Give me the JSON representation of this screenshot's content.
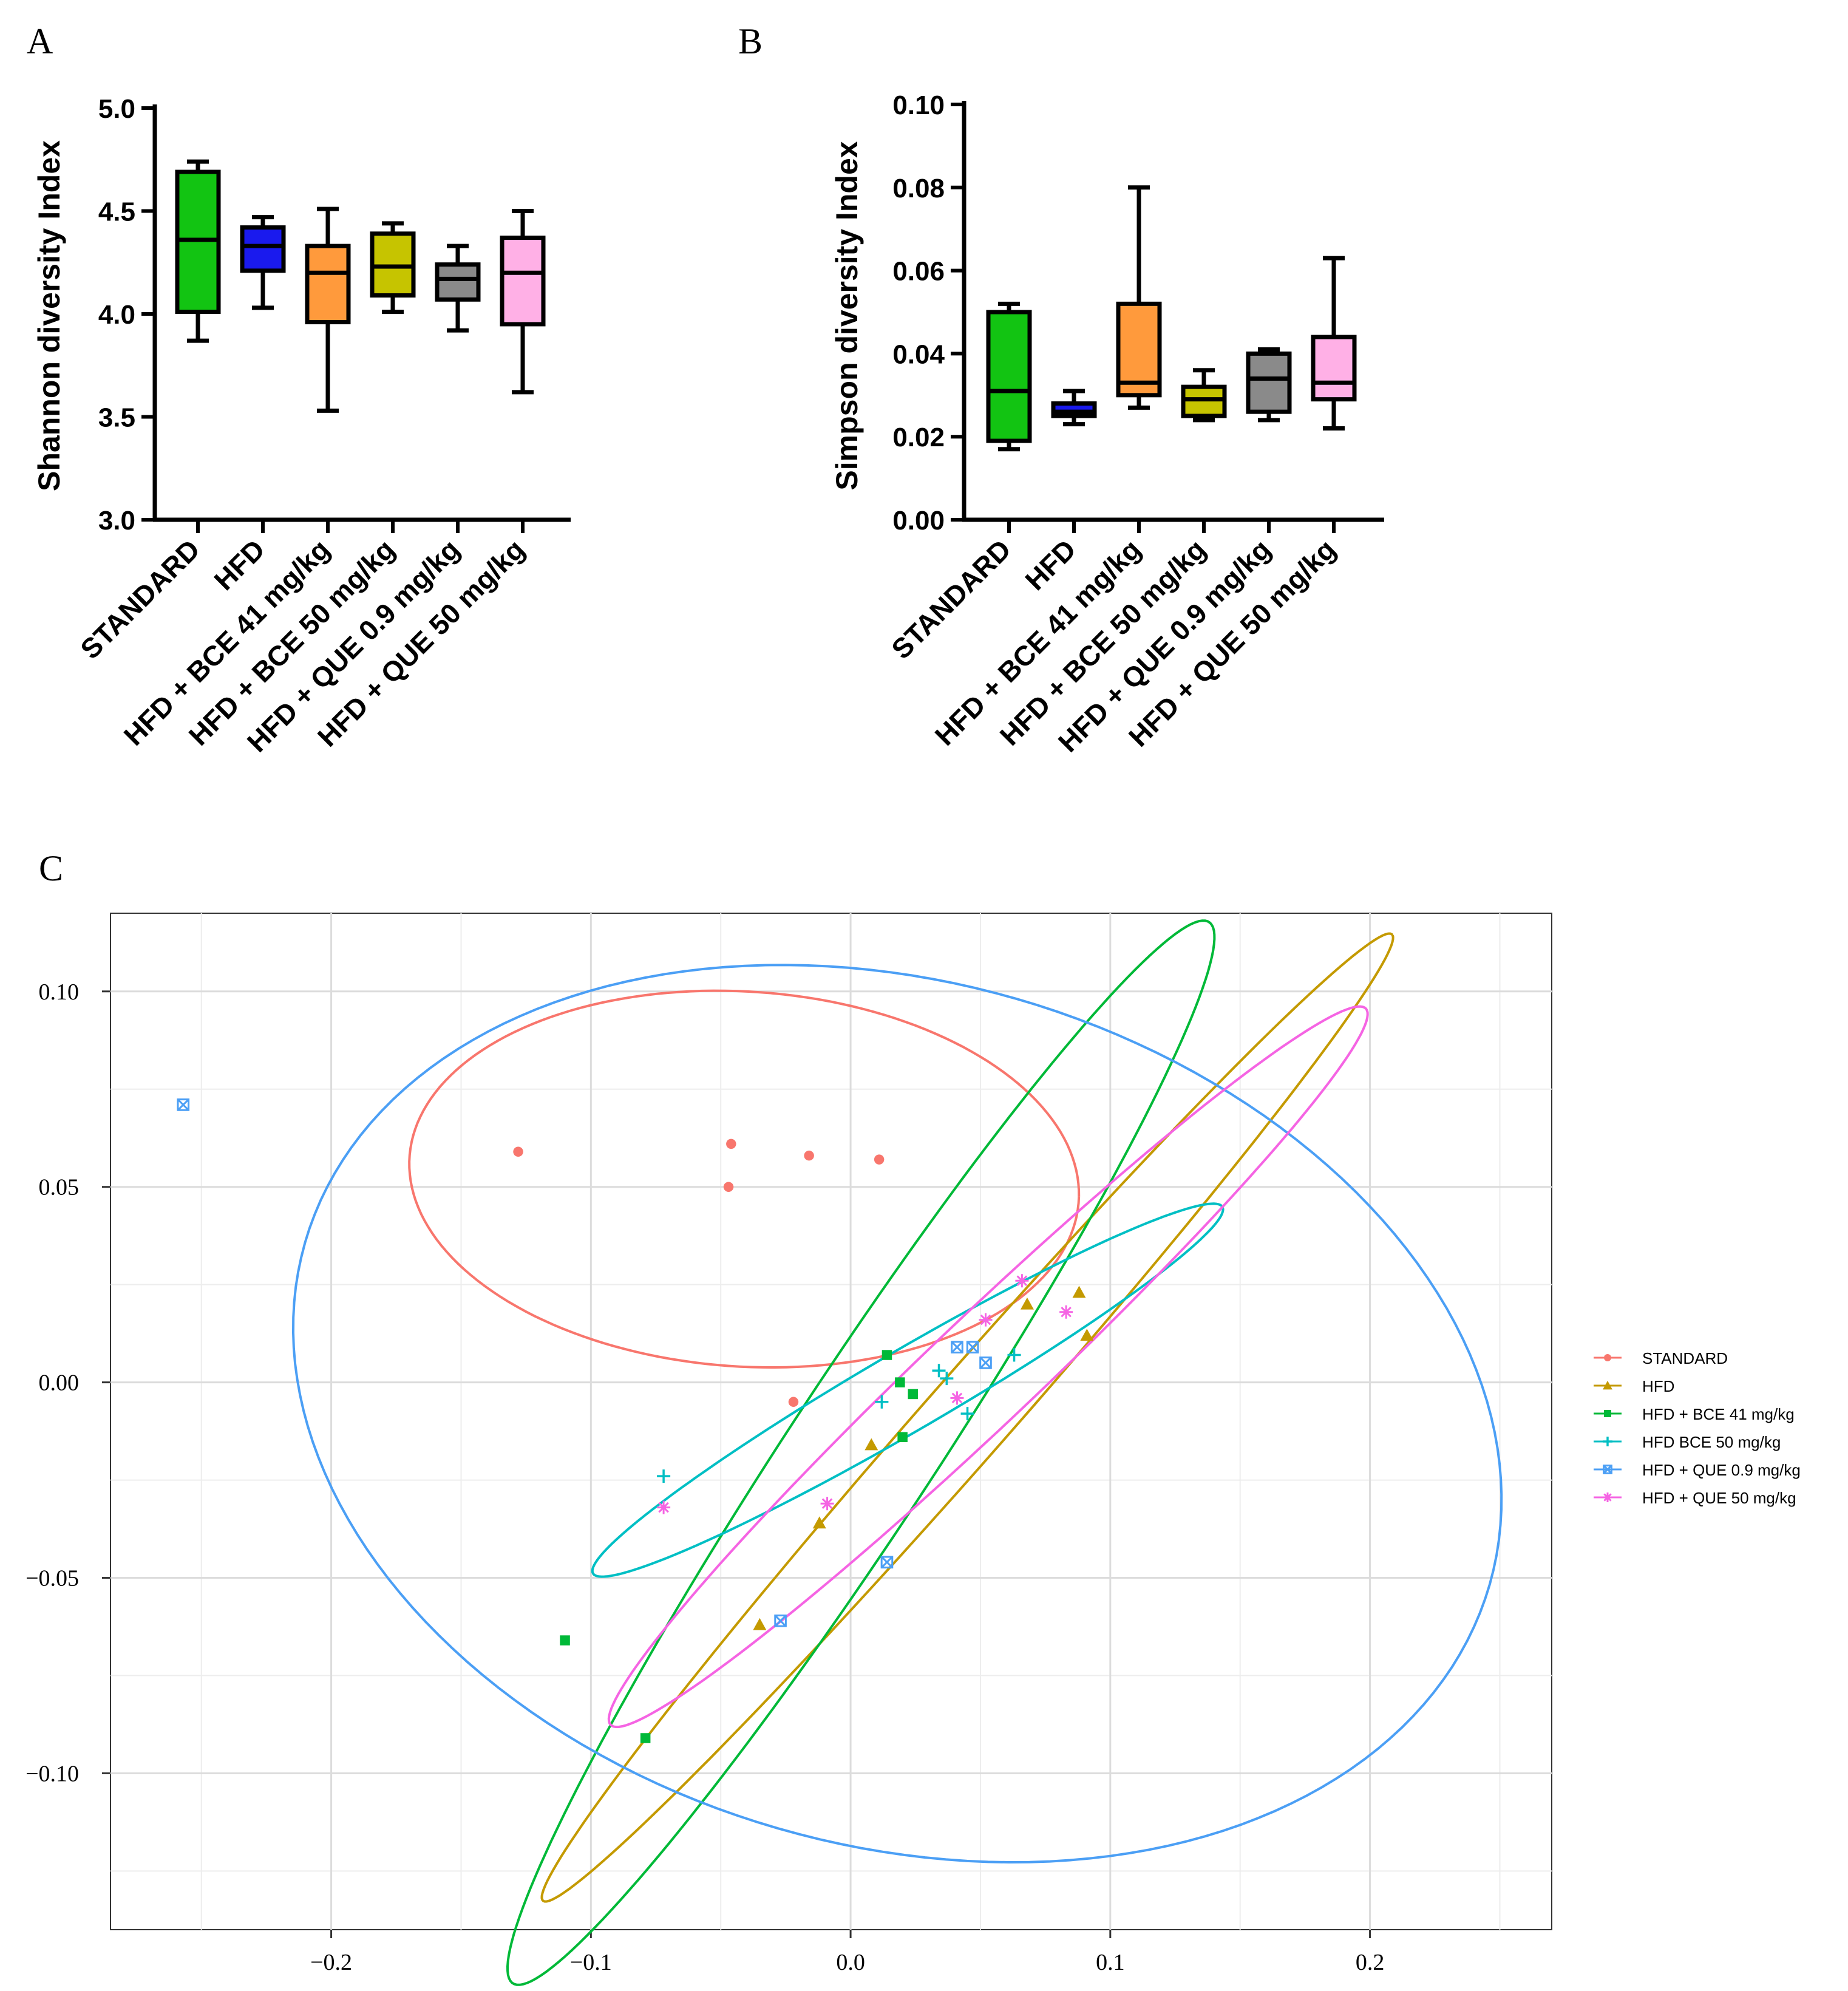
{
  "panel_labels": [
    "A",
    "B",
    "C"
  ],
  "legend_title": "",
  "chart_data": [
    {
      "type": "box",
      "panel": "A",
      "title": "",
      "xlabel": "",
      "ylabel": "Shannon diversity Index",
      "ylim": [
        3.0,
        5.0
      ],
      "yticks": [
        "3.0",
        "3.5",
        "4.0",
        "4.5",
        "5.0"
      ],
      "tick_values": [
        3.0,
        3.5,
        4.0,
        4.5,
        5.0
      ],
      "categories": [
        "STANDARD",
        "HFD",
        "HFD + BCE 41 mg/kg",
        "HFD + BCE 50 mg/kg",
        "HFD + QUE 0.9 mg/kg",
        "HFD + QUE 50 mg/kg"
      ],
      "colors": [
        "#12c412",
        "#1a1aee",
        "#ff9a3c",
        "#c6c400",
        "#8a8a8a",
        "#ffb0e6"
      ],
      "boxes": [
        {
          "min": 3.87,
          "q1": 4.01,
          "median": 4.36,
          "q3": 4.69,
          "max": 4.74
        },
        {
          "min": 4.03,
          "q1": 4.21,
          "median": 4.33,
          "q3": 4.42,
          "max": 4.47
        },
        {
          "min": 3.53,
          "q1": 3.96,
          "median": 4.2,
          "q3": 4.33,
          "max": 4.51
        },
        {
          "min": 4.01,
          "q1": 4.09,
          "median": 4.23,
          "q3": 4.39,
          "max": 4.44
        },
        {
          "min": 3.92,
          "q1": 4.07,
          "median": 4.17,
          "q3": 4.24,
          "max": 4.33
        },
        {
          "min": 3.62,
          "q1": 3.95,
          "median": 4.2,
          "q3": 4.37,
          "max": 4.5
        }
      ]
    },
    {
      "type": "box",
      "panel": "B",
      "title": "",
      "xlabel": "",
      "ylabel": "Simpson diversity Index",
      "ylim": [
        0.0,
        0.1
      ],
      "yticks": [
        "0.00",
        "0.02",
        "0.04",
        "0.06",
        "0.08",
        "0.10"
      ],
      "tick_values": [
        0.0,
        0.02,
        0.04,
        0.06,
        0.08,
        0.1
      ],
      "categories": [
        "STANDARD",
        "HFD",
        "HFD + BCE 41 mg/kg",
        "HFD + BCE 50 mg/kg",
        "HFD + QUE 0.9 mg/kg",
        "HFD + QUE 50 mg/kg"
      ],
      "colors": [
        "#12c412",
        "#1a1aee",
        "#ff9a3c",
        "#c6c400",
        "#8a8a8a",
        "#ffb0e6"
      ],
      "boxes": [
        {
          "min": 0.017,
          "q1": 0.019,
          "median": 0.031,
          "q3": 0.05,
          "max": 0.052
        },
        {
          "min": 0.023,
          "q1": 0.025,
          "median": 0.026,
          "q3": 0.028,
          "max": 0.031
        },
        {
          "min": 0.027,
          "q1": 0.03,
          "median": 0.033,
          "q3": 0.052,
          "max": 0.08
        },
        {
          "min": 0.024,
          "q1": 0.025,
          "median": 0.029,
          "q3": 0.032,
          "max": 0.036
        },
        {
          "min": 0.024,
          "q1": 0.026,
          "median": 0.034,
          "q3": 0.04,
          "max": 0.041
        },
        {
          "min": 0.022,
          "q1": 0.029,
          "median": 0.033,
          "q3": 0.044,
          "max": 0.063
        }
      ]
    },
    {
      "type": "scatter",
      "panel": "C",
      "title": "",
      "xlabel": "",
      "ylabel": "",
      "xlim": [
        -0.285,
        0.27
      ],
      "ylim": [
        -0.14,
        0.12
      ],
      "xticks": [
        "−0.2",
        "−0.1",
        "0.0",
        "0.1",
        "0.2"
      ],
      "xtick_values": [
        -0.2,
        -0.1,
        0.0,
        0.1,
        0.2
      ],
      "yticks": [
        "−0.10",
        "−0.05",
        "0.00",
        "0.05",
        "0.10"
      ],
      "ytick_values": [
        -0.1,
        -0.05,
        0.0,
        0.05,
        0.1
      ],
      "grid": true,
      "legend_position": "right",
      "series": [
        {
          "name": "STANDARD",
          "color": "#f8766d",
          "marker": "circle",
          "points": [
            [
              -0.128,
              0.059
            ],
            [
              -0.046,
              0.061
            ],
            [
              -0.047,
              0.05
            ],
            [
              -0.016,
              0.058
            ],
            [
              0.011,
              0.057
            ],
            [
              -0.022,
              -0.005
            ]
          ],
          "ellipse": {
            "cx": -0.041,
            "cy": 0.052,
            "a": 0.129,
            "b": 0.048,
            "angle": -2
          }
        },
        {
          "name": "HFD",
          "color": "#c49a00",
          "marker": "triangle",
          "points": [
            [
              0.068,
              0.02
            ],
            [
              0.088,
              0.023
            ],
            [
              0.091,
              0.012
            ],
            [
              0.008,
              -0.016
            ],
            [
              -0.012,
              -0.036
            ],
            [
              -0.035,
              -0.062
            ]
          ],
          "ellipse": {
            "cx": 0.045,
            "cy": -0.009,
            "a": 0.205,
            "b": 0.013,
            "angle": 37
          }
        },
        {
          "name": "HFD + BCE 41 mg/kg",
          "color": "#00b938",
          "marker": "square",
          "points": [
            [
              0.014,
              0.007
            ],
            [
              0.019,
              0.0
            ],
            [
              0.024,
              -0.003
            ],
            [
              0.02,
              -0.014
            ],
            [
              -0.11,
              -0.066
            ],
            [
              -0.079,
              -0.091
            ]
          ],
          "ellipse": {
            "cx": 0.004,
            "cy": -0.018,
            "a": 0.191,
            "b": 0.024,
            "angle": 45
          }
        },
        {
          "name": "HFD BCE 50 mg/kg",
          "color": "#00bfc4",
          "marker": "plus",
          "points": [
            [
              0.034,
              0.003
            ],
            [
              0.037,
              0.001
            ],
            [
              0.012,
              -0.005
            ],
            [
              0.045,
              -0.008
            ],
            [
              0.063,
              0.007
            ],
            [
              -0.072,
              -0.024
            ]
          ],
          "ellipse": {
            "cx": 0.022,
            "cy": -0.002,
            "a": 0.13,
            "b": 0.011,
            "angle": 21
          }
        },
        {
          "name": "HFD + QUE 0.9 mg/kg",
          "color": "#4b9ff5",
          "marker": "boxcross",
          "points": [
            [
              -0.257,
              0.071
            ],
            [
              0.041,
              0.009
            ],
            [
              0.047,
              0.009
            ],
            [
              0.052,
              0.005
            ],
            [
              0.014,
              -0.046
            ],
            [
              -0.027,
              -0.061
            ]
          ],
          "ellipse": {
            "cx": 0.018,
            "cy": -0.008,
            "a": 0.234,
            "b": 0.112,
            "angle": -7
          }
        },
        {
          "name": "HFD + QUE 50 mg/kg",
          "color": "#f564e3",
          "marker": "asterisk",
          "points": [
            [
              0.066,
              0.026
            ],
            [
              0.052,
              0.016
            ],
            [
              0.083,
              0.018
            ],
            [
              0.041,
              -0.004
            ],
            [
              -0.009,
              -0.031
            ],
            [
              -0.072,
              -0.032
            ]
          ],
          "ellipse": {
            "cx": 0.053,
            "cy": 0.004,
            "a": 0.172,
            "b": 0.016,
            "angle": 32
          }
        }
      ]
    }
  ]
}
